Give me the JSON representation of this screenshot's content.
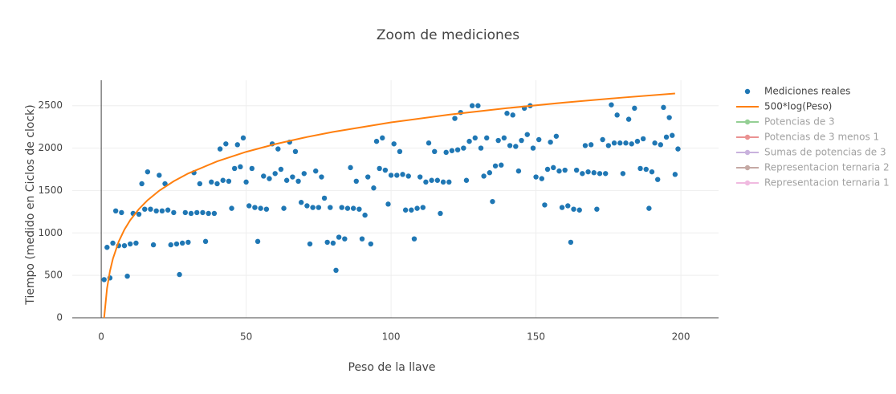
{
  "chart_data": {
    "type": "scatter",
    "title": "Zoom de mediciones",
    "x_label": "Peso de la llave",
    "y_label": "Tiempo (medido en Ciclos de clock)",
    "xlim": [
      -10,
      213
    ],
    "ylim": [
      0,
      2800
    ],
    "xticks": [
      0,
      50,
      100,
      150,
      200
    ],
    "yticks": [
      0,
      500,
      1000,
      1500,
      2000,
      2500
    ],
    "grid": true,
    "legend": "right",
    "series": [
      {
        "name": "Mediciones reales",
        "color": "#1f77b4",
        "mode": "markers",
        "x": [
          1,
          2,
          3,
          4,
          5,
          6,
          7,
          8,
          9,
          10,
          11,
          12,
          13,
          14,
          15,
          16,
          17,
          18,
          19,
          20,
          21,
          22,
          23,
          24,
          25,
          26,
          27,
          28,
          29,
          30,
          31,
          32,
          33,
          34,
          35,
          36,
          37,
          38,
          39,
          40,
          41,
          42,
          43,
          44,
          45,
          46,
          47,
          48,
          49,
          50,
          51,
          52,
          53,
          54,
          55,
          56,
          57,
          58,
          59,
          60,
          61,
          62,
          63,
          64,
          65,
          66,
          67,
          68,
          69,
          70,
          71,
          72,
          73,
          74,
          75,
          76,
          77,
          78,
          79,
          80,
          81,
          82,
          83,
          84,
          85,
          86,
          87,
          88,
          89,
          90,
          91,
          92,
          93,
          94,
          95,
          96,
          97,
          98,
          99,
          100,
          101,
          102,
          103,
          104,
          105,
          106,
          107,
          108,
          109,
          110,
          111,
          112,
          113,
          114,
          115,
          116,
          117,
          118,
          119,
          120,
          121,
          122,
          123,
          124,
          125,
          126,
          127,
          128,
          129,
          130,
          131,
          132,
          133,
          134,
          135,
          136,
          137,
          138,
          139,
          140,
          141,
          142,
          143,
          144,
          145,
          146,
          147,
          148,
          149,
          150,
          151,
          152,
          153,
          154,
          155,
          156,
          157,
          158,
          159,
          160,
          161,
          162,
          163,
          164,
          165,
          166,
          167,
          168,
          169,
          170,
          171,
          172,
          173,
          174,
          175,
          176,
          177,
          178,
          179,
          180,
          181,
          182,
          183,
          184,
          185,
          186,
          187,
          188,
          189,
          190,
          191,
          192,
          193,
          194,
          195,
          196,
          197,
          198,
          199
        ],
        "values": [
          450,
          830,
          470,
          880,
          1260,
          850,
          1240,
          850,
          490,
          870,
          1230,
          880,
          1220,
          1580,
          1280,
          1720,
          1280,
          860,
          1260,
          1680,
          1260,
          1580,
          1270,
          860,
          1240,
          870,
          510,
          880,
          1240,
          890,
          1230,
          1710,
          1240,
          1580,
          1240,
          900,
          1230,
          1600,
          1230,
          1580,
          1990,
          1620,
          2050,
          1610,
          1290,
          1760,
          2040,
          1780,
          2120,
          1600,
          1320,
          1760,
          1300,
          900,
          1290,
          1670,
          1280,
          1640,
          2050,
          1700,
          1990,
          1750,
          1290,
          1620,
          2070,
          1660,
          1960,
          1610,
          1360,
          1700,
          1320,
          870,
          1300,
          1730,
          1300,
          1660,
          1410,
          890,
          1300,
          880,
          560,
          950,
          1300,
          930,
          1290,
          1770,
          1290,
          1610,
          1280,
          930,
          1210,
          1660,
          870,
          1530,
          2080,
          1760,
          2120,
          1740,
          1340,
          1680,
          2050,
          1680,
          1960,
          1690,
          1270,
          1670,
          1270,
          930,
          1290,
          1660,
          1300,
          1600,
          2060,
          1620,
          1960,
          1620,
          1230,
          1600,
          1950,
          1600,
          1970,
          2350,
          1980,
          2420,
          2000,
          1620,
          2080,
          2500,
          2120,
          2500,
          2000,
          1670,
          2120,
          1710,
          1370,
          1790,
          2090,
          1800,
          2120,
          2410,
          2030,
          2390,
          2020,
          1730,
          2090,
          2470,
          2160,
          2500,
          2000,
          1660,
          2100,
          1640,
          1330,
          1750,
          2070,
          1770,
          2140,
          1730,
          1300,
          1740,
          1320,
          890,
          1280,
          1740,
          1270,
          1700,
          2030,
          1720,
          2040,
          1710,
          1280,
          1700,
          2100,
          1700,
          2030,
          2510,
          2060,
          2390,
          2060,
          1700,
          2060,
          2340,
          2050,
          2470,
          2080,
          1760,
          2110,
          1750,
          1290,
          1720,
          2060,
          1630,
          2040,
          2480,
          2130,
          2360,
          2150,
          1690,
          1990
        ]
      },
      {
        "name": "500*log(Peso)",
        "color": "#ff7f0e",
        "mode": "lines",
        "x": [
          1,
          2,
          3,
          4,
          6,
          8,
          10,
          13,
          16,
          20,
          25,
          30,
          40,
          50,
          60,
          70,
          80,
          100,
          120,
          140,
          160,
          180,
          198
        ],
        "values": [
          0,
          347,
          549,
          693,
          896,
          1040,
          1151,
          1282,
          1386,
          1498,
          1609,
          1701,
          1844,
          1956,
          2047,
          2124,
          2191,
          2303,
          2394,
          2471,
          2538,
          2596,
          2644
        ]
      },
      {
        "name": "Potencias de 3",
        "color": "#2ca02c",
        "mode": "lines+markers",
        "visible": "legendonly"
      },
      {
        "name": "Potencias de 3 menos 1",
        "color": "#d62728",
        "mode": "lines+markers",
        "visible": "legendonly"
      },
      {
        "name": "Sumas de potencias de 3",
        "color": "#9467bd",
        "mode": "lines+markers",
        "visible": "legendonly"
      },
      {
        "name": "Representacion ternaria 2",
        "color": "#8c564b",
        "mode": "lines+markers",
        "visible": "legendonly"
      },
      {
        "name": "Representacion ternaria 1",
        "color": "#e377c2",
        "mode": "lines+markers",
        "visible": "legendonly"
      }
    ]
  }
}
